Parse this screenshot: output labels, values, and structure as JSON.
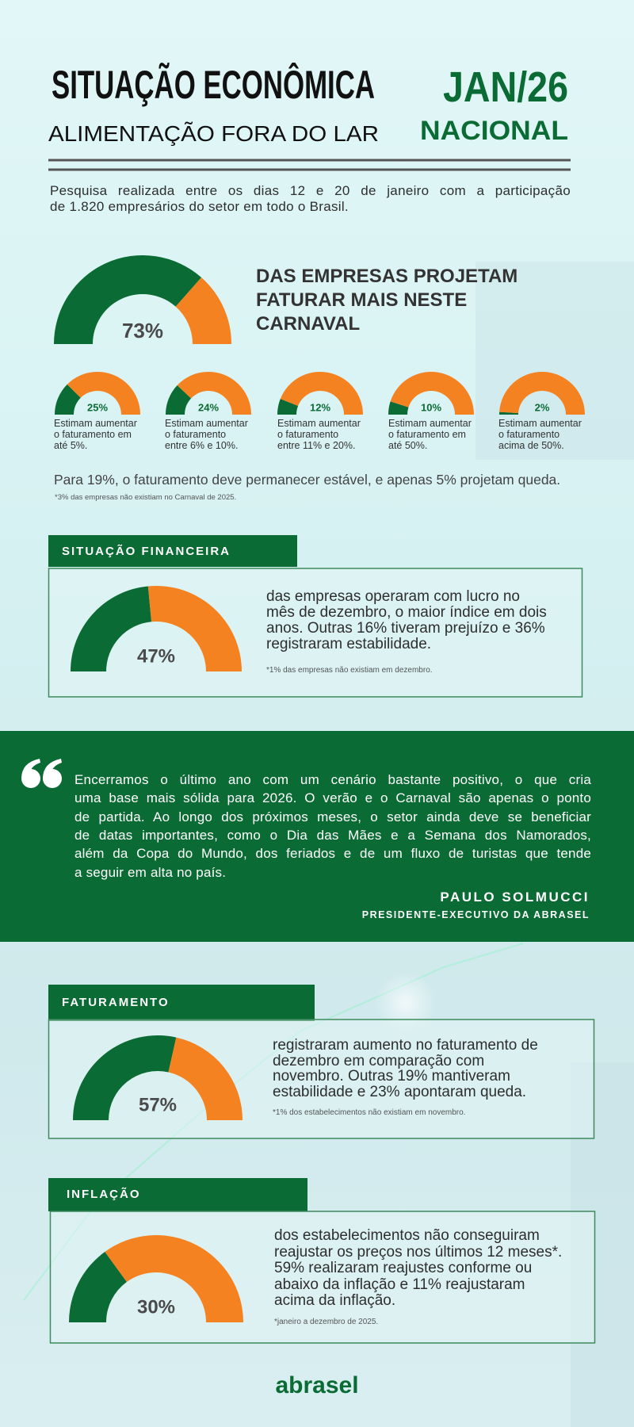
{
  "header": {
    "title": "SITUAÇÃO ECONÔMICA",
    "period": "JAN/26",
    "subtitle": "ALIMENTAÇÃO FORA DO LAR",
    "scope": "NACIONAL"
  },
  "intro": [
    "Pesquisa realizada entre os dias 12 e 20 de janeiro com a participação",
    "de 1.820 empresários do setor em todo o Brasil."
  ],
  "carnival": {
    "gauge": {
      "value": 73,
      "label": "73%"
    },
    "headline": [
      "DAS EMPRESAS PROJETAM",
      "FATURAR MAIS NESTE",
      "CARNAVAL"
    ],
    "breakdown": [
      {
        "gauge": {
          "value": 25,
          "label": "25%"
        },
        "text": [
          "Estimam aumentar",
          "o faturamento em",
          "até 5%."
        ]
      },
      {
        "gauge": {
          "value": 24,
          "label": "24%"
        },
        "text": [
          "Estimam aumentar",
          "o faturamento",
          "entre 6% e 10%."
        ]
      },
      {
        "gauge": {
          "value": 12,
          "label": "12%"
        },
        "text": [
          "Estimam aumentar",
          "o faturamento",
          "entre 11% e 20%."
        ]
      },
      {
        "gauge": {
          "value": 10,
          "label": "10%"
        },
        "text": [
          "Estimam aumentar",
          "o faturamento em",
          "até 50%."
        ]
      },
      {
        "gauge": {
          "value": 2,
          "label": "2%"
        },
        "text": [
          "Estimam aumentar",
          "o faturamento",
          "acima de 50%."
        ]
      }
    ],
    "note": "Para 19%, o faturamento deve permanecer estável, e apenas 5% projetam queda.",
    "footnote": "*3% das empresas não existiam no Carnaval de 2025."
  },
  "financial": {
    "tab": "SITUAÇÃO FINANCEIRA",
    "gauge": {
      "value": 47,
      "label": "47%"
    },
    "text": [
      "das empresas operaram com lucro no",
      "mês de dezembro, o maior índice em dois",
      "anos. Outras 16% tiveram prejuízo e 36%",
      "registraram estabilidade."
    ],
    "footnote": "*1% das empresas não existiam em dezembro."
  },
  "quote": {
    "text": [
      "Encerramos o último ano com um cenário bastante positivo, o que cria",
      "uma base mais sólida para 2026. O verão e o Carnaval são apenas o ponto",
      "de partida. Ao longo dos próximos meses, o setor ainda deve se beneficiar",
      "de datas importantes, como o Dia das Mães e a Semana dos Namorados,",
      "além da Copa do Mundo, dos feriados e de um fluxo de turistas que tende",
      "a seguir em alta no país."
    ],
    "author": "PAULO SOLMUCCI",
    "role": "PRESIDENTE-EXECUTIVO DA ABRASEL"
  },
  "revenue": {
    "tab": "FATURAMENTO",
    "gauge": {
      "value": 57,
      "label": "57%"
    },
    "text": [
      "registraram aumento no faturamento de",
      "dezembro em comparação com",
      "novembro. Outras 19% mantiveram",
      "estabilidade e 23% apontaram queda."
    ],
    "footnote": "*1% dos estabelecimentos não existiam em novembro."
  },
  "inflation": {
    "tab": "INFLAÇÃO",
    "gauge": {
      "value": 30,
      "label": "30%"
    },
    "text": [
      "dos estabelecimentos não conseguiram",
      "reajustar os preços nos últimos 12 meses*.",
      "59% realizaram reajustes conforme ou",
      "abaixo da inflação e 11% reajustaram",
      "acima da inflação."
    ],
    "footnote": "*janeiro a dezembro de 2025."
  },
  "logo": "abrasel"
}
